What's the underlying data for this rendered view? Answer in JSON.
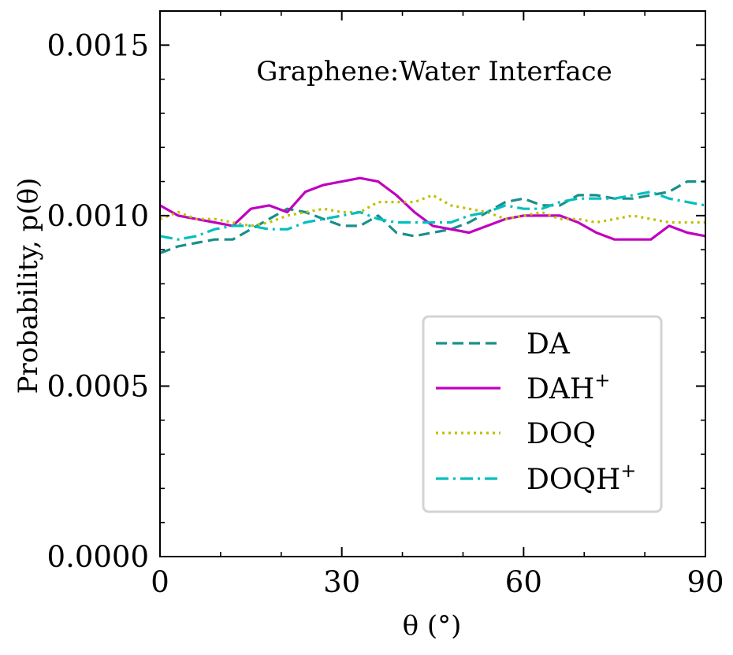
{
  "chart_data": {
    "type": "line",
    "annotation": "Graphene:Water Interface",
    "xlabel": "θ (°)",
    "ylabel": "Probability, p(θ)",
    "xlim": [
      0,
      90
    ],
    "ylim": [
      0,
      0.0016
    ],
    "xticks": [
      0,
      30,
      60,
      90
    ],
    "xtick_labels": [
      "0",
      "30",
      "60",
      "90"
    ],
    "yticks": [
      0,
      0.0005,
      0.001,
      0.0015
    ],
    "ytick_labels": [
      "0.0000",
      "0.0005",
      "0.0010",
      "0.0015"
    ],
    "grid": false,
    "legend_position": "lower-right",
    "x": [
      0,
      3,
      6,
      9,
      12,
      15,
      18,
      21,
      24,
      27,
      30,
      33,
      36,
      39,
      42,
      45,
      48,
      51,
      54,
      57,
      60,
      63,
      66,
      69,
      72,
      75,
      78,
      81,
      84,
      87,
      90
    ],
    "series": [
      {
        "name": "DA",
        "sup": "",
        "color": "#1a8f8a",
        "dash": "dashed",
        "values": [
          0.00089,
          0.00091,
          0.00092,
          0.00093,
          0.00093,
          0.00096,
          0.00099,
          0.00102,
          0.00101,
          0.00099,
          0.00097,
          0.00097,
          0.001,
          0.00095,
          0.00094,
          0.00095,
          0.00096,
          0.00098,
          0.00101,
          0.00104,
          0.00105,
          0.00103,
          0.00103,
          0.00106,
          0.00106,
          0.00105,
          0.00105,
          0.00106,
          0.00107,
          0.0011,
          0.0011
        ]
      },
      {
        "name": "DAH",
        "sup": "+",
        "color": "#bf00bf",
        "dash": "solid",
        "values": [
          0.00103,
          0.001,
          0.00099,
          0.00098,
          0.00097,
          0.00102,
          0.00103,
          0.00101,
          0.00107,
          0.00109,
          0.0011,
          0.00111,
          0.0011,
          0.00106,
          0.00101,
          0.00097,
          0.00096,
          0.00095,
          0.00097,
          0.00099,
          0.001,
          0.001,
          0.001,
          0.00098,
          0.00095,
          0.00093,
          0.00093,
          0.00093,
          0.00097,
          0.00095,
          0.00094
        ]
      },
      {
        "name": "DOQ",
        "sup": "",
        "color": "#bfbf00",
        "dash": "dotted",
        "values": [
          0.00099,
          0.00101,
          0.00099,
          0.00099,
          0.00098,
          0.00097,
          0.00098,
          0.001,
          0.00101,
          0.00102,
          0.00101,
          0.00101,
          0.00104,
          0.00104,
          0.00104,
          0.00106,
          0.00103,
          0.00102,
          0.00101,
          0.00099,
          0.001,
          0.00101,
          0.00099,
          0.00099,
          0.00098,
          0.00099,
          0.001,
          0.00099,
          0.00098,
          0.00098,
          0.00098
        ]
      },
      {
        "name": "DOQH",
        "sup": "+",
        "color": "#00bfbf",
        "dash": "dashdot",
        "values": [
          0.00094,
          0.00093,
          0.00094,
          0.00096,
          0.00097,
          0.00097,
          0.00096,
          0.00096,
          0.00098,
          0.00099,
          0.001,
          0.00101,
          0.00099,
          0.00098,
          0.00098,
          0.00098,
          0.00098,
          0.001,
          0.00101,
          0.00103,
          0.00102,
          0.00102,
          0.00104,
          0.00105,
          0.00105,
          0.00105,
          0.00106,
          0.00107,
          0.00105,
          0.00104,
          0.00103
        ]
      }
    ]
  }
}
